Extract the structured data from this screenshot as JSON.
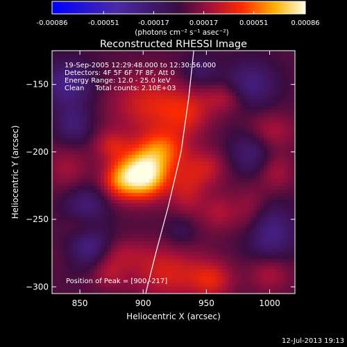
{
  "chart_data": {
    "type": "heatmap",
    "title": "Reconstructed RHESSI Image",
    "xlabel": "Heliocentric X (arcsec)",
    "ylabel": "Heliocentric Y (arcsec)",
    "xlim": [
      828,
      1020
    ],
    "ylim": [
      -305,
      -125
    ],
    "xticks": [
      850,
      900,
      950,
      1000
    ],
    "yticks": [
      -150,
      -200,
      -250,
      -300
    ],
    "colorbar": {
      "ticks": [
        -0.00086,
        -0.00051,
        -0.00017,
        0.00017,
        0.00051,
        0.00086
      ],
      "tick_labels": [
        "-0.00086",
        "-0.00051",
        "-0.00017",
        "0.00017",
        "0.00051",
        "0.00086"
      ],
      "range": [
        -0.00086,
        0.00086
      ],
      "units_label": "(photons cm⁻² s⁻¹ asec⁻²)"
    },
    "info_lines": [
      "19-Sep-2005 12:29:48.000 to 12:30:56.000",
      "Detectors: 4F 5F 6F 7F 8F, Att 0",
      "Energy Range: 12.0 - 25.0 keV",
      "Clean     Total counts: 2.10E+03"
    ],
    "peak_label": "Position of Peak = [900,-217]",
    "peak": [
      900,
      -217
    ],
    "blobs": [
      {
        "x": 900,
        "y": -217,
        "sx": 14,
        "sy": 12,
        "a": 1.0
      },
      {
        "x": 915,
        "y": -198,
        "sx": 14,
        "sy": 10,
        "a": 0.45
      },
      {
        "x": 880,
        "y": -222,
        "sx": 10,
        "sy": 10,
        "a": 0.35
      },
      {
        "x": 905,
        "y": -165,
        "sx": 22,
        "sy": 16,
        "a": 0.35
      },
      {
        "x": 935,
        "y": -172,
        "sx": 14,
        "sy": 12,
        "a": 0.28
      },
      {
        "x": 875,
        "y": -195,
        "sx": 10,
        "sy": 8,
        "a": 0.28
      },
      {
        "x": 935,
        "y": -230,
        "sx": 10,
        "sy": 14,
        "a": 0.26
      },
      {
        "x": 950,
        "y": -212,
        "sx": 12,
        "sy": 10,
        "a": 0.28
      },
      {
        "x": 960,
        "y": -245,
        "sx": 10,
        "sy": 10,
        "a": 0.22
      },
      {
        "x": 870,
        "y": -275,
        "sx": 22,
        "sy": 8,
        "a": 0.26
      },
      {
        "x": 872,
        "y": -290,
        "sx": 10,
        "sy": 8,
        "a": 0.22
      },
      {
        "x": 920,
        "y": -290,
        "sx": 22,
        "sy": 14,
        "a": 0.34
      },
      {
        "x": 955,
        "y": -295,
        "sx": 12,
        "sy": 10,
        "a": 0.3
      },
      {
        "x": 985,
        "y": -245,
        "sx": 10,
        "sy": 14,
        "a": 0.22
      },
      {
        "x": 965,
        "y": -160,
        "sx": 12,
        "sy": 8,
        "a": 0.25
      },
      {
        "x": 1000,
        "y": -185,
        "sx": 14,
        "sy": 10,
        "a": 0.25
      },
      {
        "x": 1005,
        "y": -215,
        "sx": 10,
        "sy": 10,
        "a": 0.22
      },
      {
        "x": 1000,
        "y": -290,
        "sx": 12,
        "sy": 10,
        "a": 0.24
      },
      {
        "x": 840,
        "y": -212,
        "sx": 12,
        "sy": 12,
        "a": 0.2
      },
      {
        "x": 852,
        "y": -255,
        "sx": 10,
        "sy": 8,
        "a": 0.16
      },
      {
        "x": 858,
        "y": -272,
        "sx": 12,
        "sy": 10,
        "a": -0.55
      },
      {
        "x": 840,
        "y": -150,
        "sx": 14,
        "sy": 12,
        "a": -0.4
      },
      {
        "x": 845,
        "y": -180,
        "sx": 10,
        "sy": 10,
        "a": -0.3
      },
      {
        "x": 985,
        "y": -150,
        "sx": 14,
        "sy": 12,
        "a": -0.35
      },
      {
        "x": 985,
        "y": -200,
        "sx": 12,
        "sy": 12,
        "a": -0.3
      },
      {
        "x": 1000,
        "y": -260,
        "sx": 14,
        "sy": 14,
        "a": -0.4
      },
      {
        "x": 855,
        "y": -240,
        "sx": 12,
        "sy": 10,
        "a": -0.32
      },
      {
        "x": 945,
        "y": -140,
        "sx": 10,
        "sy": 8,
        "a": -0.22
      },
      {
        "x": 930,
        "y": -258,
        "sx": 8,
        "sy": 8,
        "a": -0.18
      }
    ],
    "limb_points": [
      [
        940,
        -125
      ],
      [
        936,
        -160
      ],
      [
        930,
        -200
      ],
      [
        920,
        -240
      ],
      [
        910,
        -275
      ],
      [
        902,
        -305
      ]
    ],
    "grid": false
  },
  "footer": {
    "timestamp": "12-Jul-2013 19:13"
  }
}
